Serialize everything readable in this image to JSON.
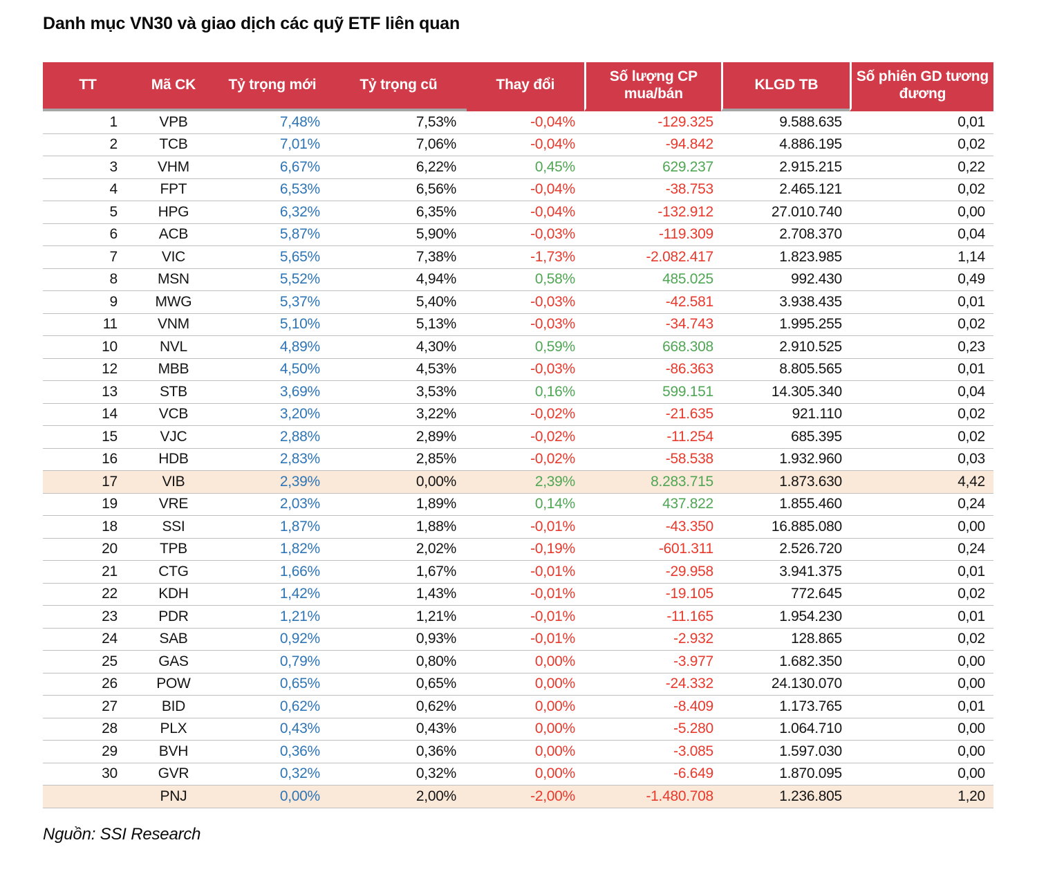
{
  "title": "Danh mục VN30 và giao dịch các quỹ ETF liên quan",
  "source": "Nguồn: SSI Research",
  "colors": {
    "header_bg": "#D13B49",
    "highlight_bg": "#FAE8D9",
    "weight_new_blue": "#2E75B6",
    "negative_red": "#E8392D",
    "positive_green": "#4FA653",
    "row_border": "#BFBFBF",
    "header_border": "#A6A6A6"
  },
  "table": {
    "columns": [
      {
        "key": "tt",
        "label": "TT"
      },
      {
        "key": "code",
        "label": "Mã CK"
      },
      {
        "key": "new",
        "label": "Tỷ trọng mới"
      },
      {
        "key": "old",
        "label": "Tỷ trọng cũ"
      },
      {
        "key": "change",
        "label": "Thay đổi"
      },
      {
        "key": "shares",
        "label": "Số lượng CP mua/bán"
      },
      {
        "key": "klgd",
        "label": "KLGD TB"
      },
      {
        "key": "sessions",
        "label": "Số phiên GD tương đương"
      }
    ],
    "rows": [
      {
        "tt": "1",
        "code": "VPB",
        "new": "7,48%",
        "old": "7,53%",
        "change": "-0,04%",
        "shares": "-129.325",
        "klgd": "9.588.635",
        "sessions": "0,01",
        "trend": "down",
        "highlight": false
      },
      {
        "tt": "2",
        "code": "TCB",
        "new": "7,01%",
        "old": "7,06%",
        "change": "-0,04%",
        "shares": "-94.842",
        "klgd": "4.886.195",
        "sessions": "0,02",
        "trend": "down",
        "highlight": false
      },
      {
        "tt": "3",
        "code": "VHM",
        "new": "6,67%",
        "old": "6,22%",
        "change": "0,45%",
        "shares": "629.237",
        "klgd": "2.915.215",
        "sessions": "0,22",
        "trend": "up",
        "highlight": false
      },
      {
        "tt": "4",
        "code": "FPT",
        "new": "6,53%",
        "old": "6,56%",
        "change": "-0,04%",
        "shares": "-38.753",
        "klgd": "2.465.121",
        "sessions": "0,02",
        "trend": "down",
        "highlight": false
      },
      {
        "tt": "5",
        "code": "HPG",
        "new": "6,32%",
        "old": "6,35%",
        "change": "-0,04%",
        "shares": "-132.912",
        "klgd": "27.010.740",
        "sessions": "0,00",
        "trend": "down",
        "highlight": false
      },
      {
        "tt": "6",
        "code": "ACB",
        "new": "5,87%",
        "old": "5,90%",
        "change": "-0,03%",
        "shares": "-119.309",
        "klgd": "2.708.370",
        "sessions": "0,04",
        "trend": "down",
        "highlight": false
      },
      {
        "tt": "7",
        "code": "VIC",
        "new": "5,65%",
        "old": "7,38%",
        "change": "-1,73%",
        "shares": "-2.082.417",
        "klgd": "1.823.985",
        "sessions": "1,14",
        "trend": "down",
        "highlight": false
      },
      {
        "tt": "8",
        "code": "MSN",
        "new": "5,52%",
        "old": "4,94%",
        "change": "0,58%",
        "shares": "485.025",
        "klgd": "992.430",
        "sessions": "0,49",
        "trend": "up",
        "highlight": false
      },
      {
        "tt": "9",
        "code": "MWG",
        "new": "5,37%",
        "old": "5,40%",
        "change": "-0,03%",
        "shares": "-42.581",
        "klgd": "3.938.435",
        "sessions": "0,01",
        "trend": "down",
        "highlight": false
      },
      {
        "tt": "11",
        "code": "VNM",
        "new": "5,10%",
        "old": "5,13%",
        "change": "-0,03%",
        "shares": "-34.743",
        "klgd": "1.995.255",
        "sessions": "0,02",
        "trend": "down",
        "highlight": false
      },
      {
        "tt": "10",
        "code": "NVL",
        "new": "4,89%",
        "old": "4,30%",
        "change": "0,59%",
        "shares": "668.308",
        "klgd": "2.910.525",
        "sessions": "0,23",
        "trend": "up",
        "highlight": false
      },
      {
        "tt": "12",
        "code": "MBB",
        "new": "4,50%",
        "old": "4,53%",
        "change": "-0,03%",
        "shares": "-86.363",
        "klgd": "8.805.565",
        "sessions": "0,01",
        "trend": "down",
        "highlight": false
      },
      {
        "tt": "13",
        "code": "STB",
        "new": "3,69%",
        "old": "3,53%",
        "change": "0,16%",
        "shares": "599.151",
        "klgd": "14.305.340",
        "sessions": "0,04",
        "trend": "up",
        "highlight": false
      },
      {
        "tt": "14",
        "code": "VCB",
        "new": "3,20%",
        "old": "3,22%",
        "change": "-0,02%",
        "shares": "-21.635",
        "klgd": "921.110",
        "sessions": "0,02",
        "trend": "down",
        "highlight": false
      },
      {
        "tt": "15",
        "code": "VJC",
        "new": "2,88%",
        "old": "2,89%",
        "change": "-0,02%",
        "shares": "-11.254",
        "klgd": "685.395",
        "sessions": "0,02",
        "trend": "down",
        "highlight": false
      },
      {
        "tt": "16",
        "code": "HDB",
        "new": "2,83%",
        "old": "2,85%",
        "change": "-0,02%",
        "shares": "-58.538",
        "klgd": "1.932.960",
        "sessions": "0,03",
        "trend": "down",
        "highlight": false
      },
      {
        "tt": "17",
        "code": "VIB",
        "new": "2,39%",
        "old": "0,00%",
        "change": "2,39%",
        "shares": "8.283.715",
        "klgd": "1.873.630",
        "sessions": "4,42",
        "trend": "up",
        "highlight": true
      },
      {
        "tt": "19",
        "code": "VRE",
        "new": "2,03%",
        "old": "1,89%",
        "change": "0,14%",
        "shares": "437.822",
        "klgd": "1.855.460",
        "sessions": "0,24",
        "trend": "up",
        "highlight": false
      },
      {
        "tt": "18",
        "code": "SSI",
        "new": "1,87%",
        "old": "1,88%",
        "change": "-0,01%",
        "shares": "-43.350",
        "klgd": "16.885.080",
        "sessions": "0,00",
        "trend": "down",
        "highlight": false
      },
      {
        "tt": "20",
        "code": "TPB",
        "new": "1,82%",
        "old": "2,02%",
        "change": "-0,19%",
        "shares": "-601.311",
        "klgd": "2.526.720",
        "sessions": "0,24",
        "trend": "down",
        "highlight": false
      },
      {
        "tt": "21",
        "code": "CTG",
        "new": "1,66%",
        "old": "1,67%",
        "change": "-0,01%",
        "shares": "-29.958",
        "klgd": "3.941.375",
        "sessions": "0,01",
        "trend": "down",
        "highlight": false
      },
      {
        "tt": "22",
        "code": "KDH",
        "new": "1,42%",
        "old": "1,43%",
        "change": "-0,01%",
        "shares": "-19.105",
        "klgd": "772.645",
        "sessions": "0,02",
        "trend": "down",
        "highlight": false
      },
      {
        "tt": "23",
        "code": "PDR",
        "new": "1,21%",
        "old": "1,21%",
        "change": "-0,01%",
        "shares": "-11.165",
        "klgd": "1.954.230",
        "sessions": "0,01",
        "trend": "down",
        "highlight": false
      },
      {
        "tt": "24",
        "code": "SAB",
        "new": "0,92%",
        "old": "0,93%",
        "change": "-0,01%",
        "shares": "-2.932",
        "klgd": "128.865",
        "sessions": "0,02",
        "trend": "down",
        "highlight": false
      },
      {
        "tt": "25",
        "code": "GAS",
        "new": "0,79%",
        "old": "0,80%",
        "change": "0,00%",
        "shares": "-3.977",
        "klgd": "1.682.350",
        "sessions": "0,00",
        "trend": "down",
        "highlight": false
      },
      {
        "tt": "26",
        "code": "POW",
        "new": "0,65%",
        "old": "0,65%",
        "change": "0,00%",
        "shares": "-24.332",
        "klgd": "24.130.070",
        "sessions": "0,00",
        "trend": "down",
        "highlight": false
      },
      {
        "tt": "27",
        "code": "BID",
        "new": "0,62%",
        "old": "0,62%",
        "change": "0,00%",
        "shares": "-8.409",
        "klgd": "1.173.765",
        "sessions": "0,01",
        "trend": "down",
        "highlight": false
      },
      {
        "tt": "28",
        "code": "PLX",
        "new": "0,43%",
        "old": "0,43%",
        "change": "0,00%",
        "shares": "-5.280",
        "klgd": "1.064.710",
        "sessions": "0,00",
        "trend": "down",
        "highlight": false
      },
      {
        "tt": "29",
        "code": "BVH",
        "new": "0,36%",
        "old": "0,36%",
        "change": "0,00%",
        "shares": "-3.085",
        "klgd": "1.597.030",
        "sessions": "0,00",
        "trend": "down",
        "highlight": false
      },
      {
        "tt": "30",
        "code": "GVR",
        "new": "0,32%",
        "old": "0,32%",
        "change": "0,00%",
        "shares": "-6.649",
        "klgd": "1.870.095",
        "sessions": "0,00",
        "trend": "down",
        "highlight": false
      },
      {
        "tt": "",
        "code": "PNJ",
        "new": "0,00%",
        "old": "2,00%",
        "change": "-2,00%",
        "shares": "-1.480.708",
        "klgd": "1.236.805",
        "sessions": "1,20",
        "trend": "down",
        "highlight": true
      }
    ]
  }
}
